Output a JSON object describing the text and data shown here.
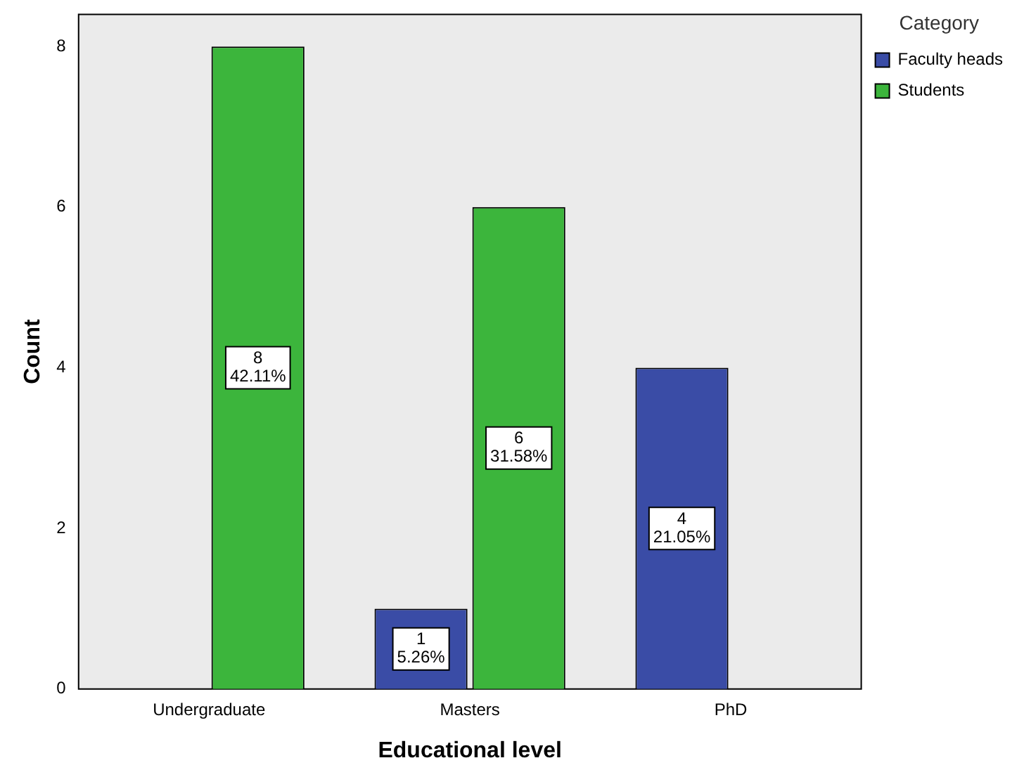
{
  "chart_data": {
    "type": "bar",
    "xlabel": "Educational level",
    "ylabel": "Count",
    "legend_title": "Category",
    "legend": "top right",
    "categories": [
      "Undergraduate",
      "Masters",
      "PhD"
    ],
    "series": [
      {
        "name": "Faculty heads",
        "color": "#3a4ca6",
        "values": [
          null,
          1,
          4
        ],
        "value_labels": [
          null,
          "1\n5.26%",
          "4\n21.05%"
        ]
      },
      {
        "name": "Students",
        "color": "#3cb53c",
        "values": [
          8,
          6,
          null
        ],
        "value_labels": [
          "8\n42.11%",
          "6\n31.58%",
          null
        ]
      }
    ],
    "ylim": [
      0,
      8.4
    ],
    "yticks": [
      0,
      2,
      4,
      6,
      8
    ],
    "grid": false
  }
}
